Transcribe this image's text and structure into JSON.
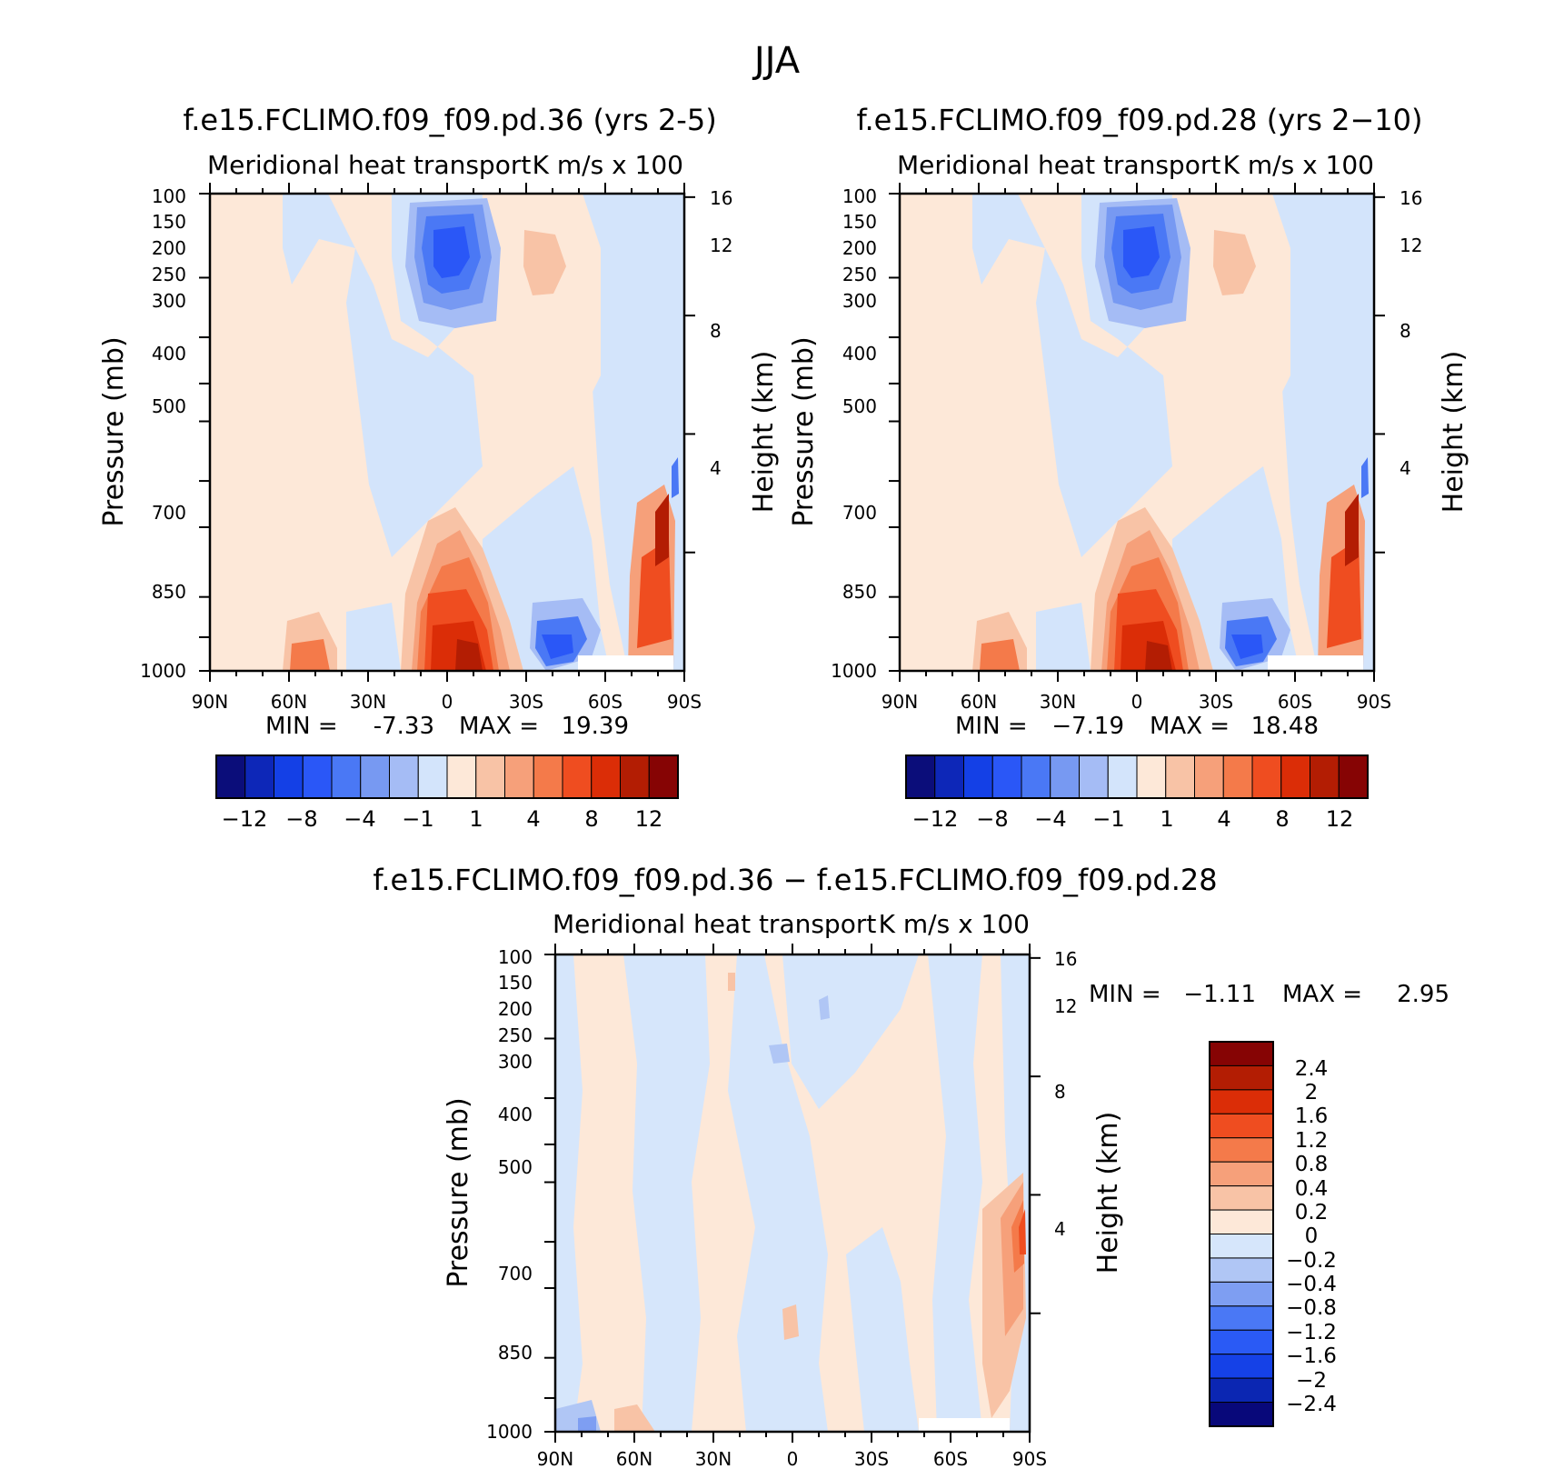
{
  "page_title": "JJA",
  "colors": {
    "main_scale": [
      "#0b0d7a",
      "#0d27b8",
      "#1440e6",
      "#2a57f7",
      "#4a78f5",
      "#7799f2",
      "#a5bcf5",
      "#d3e4fb",
      "#fde8d8",
      "#f8c3a6",
      "#f6a07a",
      "#f47a4a",
      "#ef4d20",
      "#db2d07",
      "#b31d03",
      "#860404"
    ],
    "diff_scale": [
      "#08087a",
      "#0b26b2",
      "#1541e7",
      "#2a5af5",
      "#4a78f5",
      "#7e9ef2",
      "#b0c6f5",
      "#d6e6fb",
      "#fde8d8",
      "#f8c3a6",
      "#f6a07a",
      "#f47a4a",
      "#ef4d20",
      "#db2d07",
      "#b31d03",
      "#860404"
    ]
  },
  "chart_data": [
    {
      "type": "heatmap",
      "title": "f.e15.FCLIMO.f09_f09.pd.36 (yrs 2-5)",
      "subtitle_left": "Meridional heat transport",
      "subtitle_right": "K m/s x 100",
      "ylabel": "Pressure (mb)",
      "ylabel_right": "Height (km)",
      "x_ticks": [
        "90N",
        "60N",
        "30N",
        "0",
        "30S",
        "60S",
        "90S"
      ],
      "y_ticks": [
        "100",
        "150",
        "200",
        "250",
        "300",
        "400",
        "500",
        "700",
        "850",
        "1000"
      ],
      "y_right_ticks": [
        "16",
        "12",
        "8",
        "4"
      ],
      "ylim": [
        1000,
        100
      ],
      "xlim": [
        "90N",
        "90S"
      ],
      "stats": {
        "min_label": "MIN =",
        "min": "-7.33",
        "max_label": "MAX =",
        "max": "19.39"
      },
      "colorbar_labels": [
        "−12",
        "−8",
        "−4",
        "−1",
        "1",
        "4",
        "8",
        "12"
      ],
      "features": [
        {
          "lat": -5,
          "p": 200,
          "value": -7.3
        },
        {
          "lat": -25,
          "p": 220,
          "value": 4.5
        },
        {
          "lat": 5,
          "p": 960,
          "value": 19.4
        },
        {
          "lat": -40,
          "p": 950,
          "value": -6.5
        },
        {
          "lat": 60,
          "p": 975,
          "value": 5.5
        },
        {
          "lat": -82,
          "p": 900,
          "value": 9.5
        }
      ]
    },
    {
      "type": "heatmap",
      "title": "f.e15.FCLIMO.f09_f09.pd.28 (yrs 2−10)",
      "subtitle_left": "Meridional heat transport",
      "subtitle_right": "K m/s x 100",
      "ylabel": "Pressure (mb)",
      "ylabel_right": "Height (km)",
      "x_ticks": [
        "90N",
        "60N",
        "30N",
        "0",
        "30S",
        "60S",
        "90S"
      ],
      "y_ticks": [
        "100",
        "150",
        "200",
        "250",
        "300",
        "400",
        "500",
        "700",
        "850",
        "1000"
      ],
      "y_right_ticks": [
        "16",
        "12",
        "8",
        "4"
      ],
      "ylim": [
        1000,
        100
      ],
      "xlim": [
        "90N",
        "90S"
      ],
      "stats": {
        "min_label": "MIN =",
        "min": "−7.19",
        "max_label": "MAX =",
        "max": "18.48"
      },
      "colorbar_labels": [
        "−12",
        "−8",
        "−4",
        "−1",
        "1",
        "4",
        "8",
        "12"
      ],
      "features": [
        {
          "lat": -5,
          "p": 200,
          "value": -7.2
        },
        {
          "lat": -25,
          "p": 220,
          "value": 4.0
        },
        {
          "lat": 5,
          "p": 960,
          "value": 18.5
        },
        {
          "lat": -40,
          "p": 950,
          "value": -6.2
        },
        {
          "lat": 60,
          "p": 975,
          "value": 5.2
        },
        {
          "lat": -82,
          "p": 900,
          "value": 9.0
        }
      ]
    },
    {
      "type": "heatmap",
      "title": "f.e15.FCLIMO.f09_f09.pd.36 − f.e15.FCLIMO.f09_f09.pd.28",
      "subtitle_left": "Meridional heat transport",
      "subtitle_right": "K m/s x 100",
      "ylabel": "Pressure (mb)",
      "ylabel_right": "Height (km)",
      "x_ticks": [
        "90N",
        "60N",
        "30N",
        "0",
        "30S",
        "60S",
        "90S"
      ],
      "y_ticks": [
        "100",
        "150",
        "200",
        "250",
        "300",
        "400",
        "500",
        "700",
        "850",
        "1000"
      ],
      "y_right_ticks": [
        "16",
        "12",
        "8",
        "4"
      ],
      "ylim": [
        1000,
        100
      ],
      "xlim": [
        "90N",
        "90S"
      ],
      "stats": {
        "min_label": "MIN =",
        "min": "−1.11",
        "max_label": "MAX =",
        "max": "2.95"
      },
      "colorbar_labels": [
        "2.4",
        "2",
        "1.6",
        "1.2",
        "0.8",
        "0.4",
        "0.2",
        "0",
        "−0.2",
        "−0.4",
        "−0.8",
        "−1.2",
        "−1.6",
        "−2",
        "−2.4"
      ],
      "features": [
        {
          "lat": -85,
          "p": 700,
          "value": 2.9
        },
        {
          "lat": -10,
          "p": 600,
          "value": 0.3
        },
        {
          "lat": 20,
          "p": 500,
          "value": -0.3
        }
      ]
    }
  ]
}
